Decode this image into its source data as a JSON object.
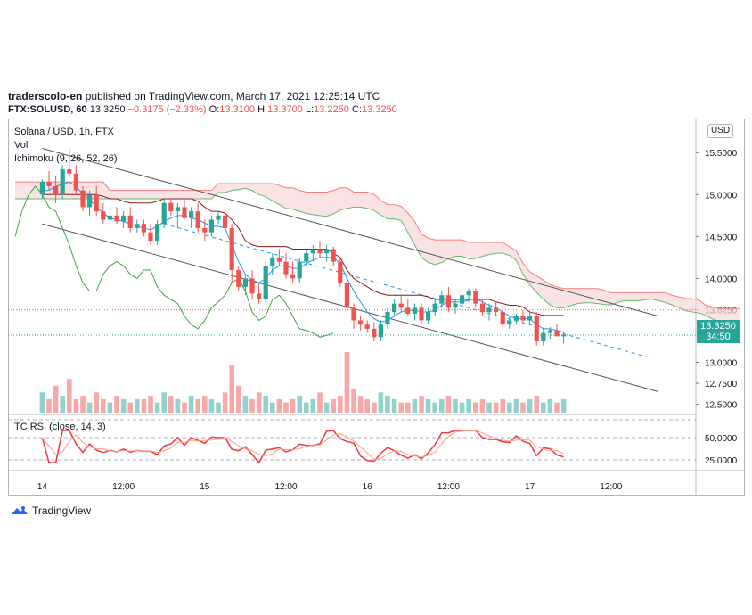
{
  "header": {
    "user": "traderscolo-en",
    "published": "published on TradingView.com, March 17, 2021 12:25:14 UTC",
    "symbol": "FTX:SOLUSD, 60",
    "last": "13.3250",
    "change": "−0.3175 (−2.33%)",
    "o_label": "O:",
    "o": "13.3100",
    "h_label": "H:",
    "h": "13.3700",
    "l_label": "L:",
    "l": "13.2250",
    "c_label": "C:",
    "c": "13.3250"
  },
  "legend": {
    "title": "Solana / USD, 1h, FTX",
    "vol": "Vol",
    "ichimoku": "Ichimoku (9, 26, 52, 26)",
    "rsi": "TC RSI (close, 14, 3)"
  },
  "currency_button": "USD",
  "last_price_tag": {
    "price": "13.3250",
    "countdown": "34:50"
  },
  "brand": "TradingView",
  "colors": {
    "up": "#26a69a",
    "down": "#ef5350",
    "kumo": "#f8d7da",
    "kijun": "#8b1a1a",
    "tenkan": "#2196f3",
    "chikou": "#43a047",
    "rsi": "#f23645"
  },
  "chart_data": {
    "type": "candlestick",
    "price_ticks": [
      15.5,
      15.0,
      14.5,
      14.0,
      13.625,
      13.0,
      12.75,
      12.5
    ],
    "price_tick_labels": [
      "15.5000",
      "15.0000",
      "14.5000",
      "14.0000",
      "13.6250",
      "13.0000",
      "12.7500",
      "12.5000"
    ],
    "price_range": [
      12.4,
      15.8
    ],
    "rsi_ticks": [
      50,
      25
    ],
    "rsi_tick_labels": [
      "50.0000",
      "25.0000"
    ],
    "rsi_range": [
      15,
      75
    ],
    "x_ticks": [
      {
        "i": 0,
        "label": "14"
      },
      {
        "i": 12,
        "label": "12:00"
      },
      {
        "i": 24,
        "label": "15"
      },
      {
        "i": 36,
        "label": "12:00"
      },
      {
        "i": 48,
        "label": "16"
      },
      {
        "i": 60,
        "label": "12:00"
      },
      {
        "i": 72,
        "label": "17"
      },
      {
        "i": 84,
        "label": "12:00"
      }
    ],
    "x_start": -4,
    "candles": [
      [
        15.0,
        15.18,
        14.95,
        15.15
      ],
      [
        15.15,
        15.28,
        15.05,
        15.1
      ],
      [
        15.1,
        15.22,
        14.9,
        15.0
      ],
      [
        15.0,
        15.35,
        14.95,
        15.3
      ],
      [
        15.3,
        15.55,
        15.2,
        15.25
      ],
      [
        15.25,
        15.35,
        15.0,
        15.05
      ],
      [
        15.05,
        15.1,
        14.8,
        14.85
      ],
      [
        14.85,
        15.05,
        14.75,
        15.0
      ],
      [
        15.0,
        15.1,
        14.75,
        14.8
      ],
      [
        14.8,
        14.9,
        14.65,
        14.7
      ],
      [
        14.7,
        14.85,
        14.6,
        14.75
      ],
      [
        14.75,
        14.85,
        14.65,
        14.68
      ],
      [
        14.68,
        14.8,
        14.6,
        14.75
      ],
      [
        14.75,
        14.85,
        14.55,
        14.6
      ],
      [
        14.6,
        14.7,
        14.55,
        14.65
      ],
      [
        14.65,
        14.7,
        14.5,
        14.55
      ],
      [
        14.55,
        14.65,
        14.4,
        14.45
      ],
      [
        14.45,
        14.7,
        14.4,
        14.65
      ],
      [
        14.65,
        14.95,
        14.6,
        14.9
      ],
      [
        14.9,
        14.95,
        14.75,
        14.8
      ],
      [
        14.8,
        14.9,
        14.6,
        14.85
      ],
      [
        14.85,
        14.95,
        14.7,
        14.72
      ],
      [
        14.72,
        14.85,
        14.6,
        14.8
      ],
      [
        14.8,
        14.9,
        14.55,
        14.6
      ],
      [
        14.6,
        14.7,
        14.45,
        14.55
      ],
      [
        14.55,
        14.75,
        14.5,
        14.7
      ],
      [
        14.7,
        14.8,
        14.65,
        14.75
      ],
      [
        14.75,
        14.8,
        14.55,
        14.6
      ],
      [
        14.6,
        14.65,
        13.95,
        14.1
      ],
      [
        14.1,
        14.15,
        13.85,
        13.9
      ],
      [
        13.9,
        14.05,
        13.8,
        14.0
      ],
      [
        14.0,
        14.1,
        13.75,
        13.82
      ],
      [
        13.82,
        13.95,
        13.7,
        13.75
      ],
      [
        13.75,
        14.2,
        13.7,
        14.15
      ],
      [
        14.15,
        14.3,
        14.05,
        14.25
      ],
      [
        14.25,
        14.35,
        14.15,
        14.2
      ],
      [
        14.2,
        14.3,
        14.0,
        14.05
      ],
      [
        14.05,
        14.2,
        13.95,
        14.0
      ],
      [
        14.0,
        14.25,
        13.95,
        14.2
      ],
      [
        14.2,
        14.35,
        14.15,
        14.3
      ],
      [
        14.3,
        14.4,
        14.2,
        14.35
      ],
      [
        14.35,
        14.45,
        14.25,
        14.3
      ],
      [
        14.3,
        14.4,
        14.2,
        14.35
      ],
      [
        14.35,
        14.38,
        14.15,
        14.2
      ],
      [
        14.2,
        14.25,
        13.9,
        13.95
      ],
      [
        13.95,
        14.0,
        13.6,
        13.65
      ],
      [
        13.65,
        13.7,
        13.4,
        13.5
      ],
      [
        13.5,
        13.55,
        13.38,
        13.45
      ],
      [
        13.45,
        13.5,
        13.35,
        13.4
      ],
      [
        13.4,
        13.48,
        13.25,
        13.3
      ],
      [
        13.3,
        13.5,
        13.25,
        13.45
      ],
      [
        13.45,
        13.65,
        13.4,
        13.6
      ],
      [
        13.6,
        13.75,
        13.55,
        13.7
      ],
      [
        13.7,
        13.8,
        13.6,
        13.65
      ],
      [
        13.65,
        13.75,
        13.55,
        13.58
      ],
      [
        13.58,
        13.7,
        13.5,
        13.65
      ],
      [
        13.65,
        13.7,
        13.45,
        13.5
      ],
      [
        13.5,
        13.65,
        13.45,
        13.6
      ],
      [
        13.6,
        13.75,
        13.55,
        13.7
      ],
      [
        13.7,
        13.85,
        13.65,
        13.8
      ],
      [
        13.8,
        13.9,
        13.6,
        13.65
      ],
      [
        13.65,
        13.75,
        13.58,
        13.7
      ],
      [
        13.7,
        13.85,
        13.65,
        13.8
      ],
      [
        13.8,
        13.88,
        13.72,
        13.85
      ],
      [
        13.85,
        13.88,
        13.65,
        13.7
      ],
      [
        13.7,
        13.75,
        13.55,
        13.6
      ],
      [
        13.6,
        13.7,
        13.5,
        13.65
      ],
      [
        13.65,
        13.72,
        13.55,
        13.6
      ],
      [
        13.6,
        13.68,
        13.4,
        13.45
      ],
      [
        13.45,
        13.55,
        13.4,
        13.5
      ],
      [
        13.5,
        13.58,
        13.45,
        13.55
      ],
      [
        13.55,
        13.62,
        13.48,
        13.5
      ],
      [
        13.5,
        13.6,
        13.45,
        13.55
      ],
      [
        13.55,
        13.6,
        13.2,
        13.25
      ],
      [
        13.25,
        13.4,
        13.2,
        13.35
      ],
      [
        13.35,
        13.42,
        13.28,
        13.38
      ],
      [
        13.38,
        13.45,
        13.31,
        13.31
      ],
      [
        13.31,
        13.37,
        13.225,
        13.325
      ]
    ],
    "volume_series_ticks": "relative",
    "volume": [
      6,
      4,
      8,
      5,
      10,
      4,
      5,
      3,
      6,
      4,
      3,
      5,
      4,
      3,
      4,
      4,
      5,
      3,
      6,
      5,
      4,
      3,
      5,
      4,
      5,
      4,
      3,
      6,
      14,
      8,
      5,
      4,
      6,
      5,
      3,
      4,
      3,
      4,
      5,
      3,
      4,
      6,
      3,
      4,
      5,
      18,
      7,
      5,
      4,
      3,
      6,
      5,
      4,
      3,
      3,
      4,
      5,
      4,
      3,
      4,
      5,
      4,
      3,
      4,
      3,
      4,
      3,
      3,
      4,
      3,
      4,
      3,
      4,
      5,
      3,
      4,
      3,
      4
    ],
    "tenkan": [
      15.05,
      15.05,
      15.1,
      15.12,
      15.15,
      15.1,
      15.0,
      14.95,
      14.85,
      14.78,
      14.72,
      14.7,
      14.68,
      14.65,
      14.62,
      14.6,
      14.58,
      14.62,
      14.68,
      14.72,
      14.75,
      14.75,
      14.72,
      14.7,
      14.66,
      14.62,
      14.62,
      14.6,
      14.4,
      14.2,
      14.05,
      13.98,
      13.95,
      14.0,
      14.1,
      14.15,
      14.15,
      14.12,
      14.12,
      14.18,
      14.22,
      14.25,
      14.25,
      14.25,
      14.18,
      14.0,
      13.85,
      13.72,
      13.6,
      13.52,
      13.48,
      13.5,
      13.55,
      13.6,
      13.62,
      13.62,
      13.6,
      13.6,
      13.62,
      13.68,
      13.72,
      13.72,
      13.72,
      13.74,
      13.76,
      13.72,
      13.68,
      13.65,
      13.6,
      13.55,
      13.52,
      13.52,
      13.52,
      13.45,
      13.4,
      13.4,
      13.38,
      13.36
    ],
    "kijun": [
      15.0,
      15.0,
      15.0,
      15.0,
      15.0,
      15.0,
      15.0,
      15.0,
      15.0,
      14.98,
      14.95,
      14.95,
      14.92,
      14.9,
      14.9,
      14.9,
      14.9,
      14.92,
      14.95,
      14.95,
      14.95,
      14.95,
      14.95,
      14.92,
      14.85,
      14.8,
      14.8,
      14.78,
      14.7,
      14.6,
      14.45,
      14.4,
      14.38,
      14.38,
      14.38,
      14.38,
      14.38,
      14.35,
      14.35,
      14.35,
      14.35,
      14.35,
      14.35,
      14.3,
      14.25,
      14.1,
      14.0,
      13.95,
      13.9,
      13.85,
      13.82,
      13.8,
      13.8,
      13.8,
      13.8,
      13.8,
      13.8,
      13.78,
      13.75,
      13.75,
      13.75,
      13.75,
      13.75,
      13.75,
      13.75,
      13.75,
      13.75,
      13.72,
      13.7,
      13.68,
      13.68,
      13.66,
      13.6,
      13.58,
      13.56,
      13.56,
      13.56,
      13.56
    ],
    "chikou": [
      14.5,
      14.8,
      15.0,
      15.1,
      15.0,
      14.85,
      14.8,
      14.6,
      14.4,
      14.15,
      13.95,
      13.85,
      13.85,
      14.05,
      14.15,
      14.2,
      14.15,
      14.05,
      14.0,
      14.1,
      14.1,
      13.9,
      13.8,
      13.75,
      13.7,
      13.55,
      13.45,
      13.4,
      13.5,
      13.65,
      13.72,
      13.8,
      13.95,
      14.0,
      13.85,
      13.6,
      13.5,
      13.55,
      13.75,
      13.8,
      13.7,
      13.55,
      13.4,
      13.38,
      13.35,
      13.3,
      13.32,
      13.35
    ]
  }
}
